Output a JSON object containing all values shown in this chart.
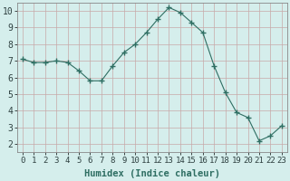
{
  "x": [
    0,
    1,
    2,
    3,
    4,
    5,
    6,
    7,
    8,
    9,
    10,
    11,
    12,
    13,
    14,
    15,
    16,
    17,
    18,
    19,
    20,
    21,
    22,
    23
  ],
  "y": [
    7.1,
    6.9,
    6.9,
    7.0,
    6.9,
    6.4,
    5.8,
    5.8,
    6.7,
    7.5,
    8.0,
    8.7,
    9.5,
    10.2,
    9.9,
    9.3,
    8.7,
    6.7,
    5.1,
    3.9,
    3.6,
    2.2,
    2.5,
    3.1
  ],
  "line_color": "#2e6e62",
  "marker": "+",
  "marker_size": 4,
  "bg_color": "#d5eeec",
  "grid_color_x": "#c8a8a8",
  "grid_color_y": "#c8a8a8",
  "xlabel": "Humidex (Indice chaleur)",
  "xlabel_fontsize": 7.5,
  "tick_fontsize": 6.5,
  "ylim": [
    1.5,
    10.5
  ],
  "xlim": [
    -0.5,
    23.5
  ],
  "yticks": [
    2,
    3,
    4,
    5,
    6,
    7,
    8,
    9,
    10
  ],
  "xticks": [
    0,
    1,
    2,
    3,
    4,
    5,
    6,
    7,
    8,
    9,
    10,
    11,
    12,
    13,
    14,
    15,
    16,
    17,
    18,
    19,
    20,
    21,
    22,
    23
  ]
}
